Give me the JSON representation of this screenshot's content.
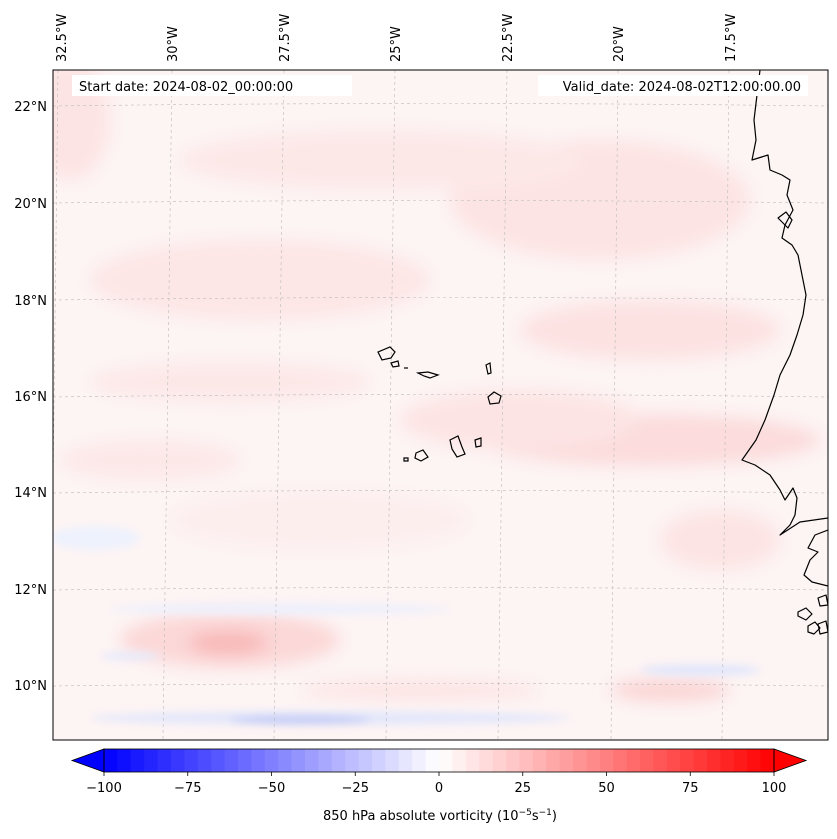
{
  "map": {
    "start_date": "Start date: 2024-08-02_00:00:00",
    "valid_date": "Valid_date: 2024-08-02T12:00:00.00",
    "longitude_labels": [
      "32.5°W",
      "30°W",
      "27.5°W",
      "25°W",
      "22.5°W",
      "20°W",
      "17.5°W"
    ],
    "latitude_labels": [
      "22°N",
      "20°N",
      "18°N",
      "16°N",
      "14°N",
      "12°N",
      "10°N"
    ],
    "field": "850 hPa absolute vorticity"
  },
  "colorbar": {
    "label_main": "850 hPa absolute vorticity (10",
    "label_exp1": "−5",
    "label_mid": "s",
    "label_exp2": "−1",
    "label_end": ")",
    "min": -100,
    "max": 100,
    "tick_values": [
      -100,
      -75,
      -50,
      -25,
      0,
      25,
      50,
      75,
      100
    ],
    "tick_labels": [
      "−100",
      "−75",
      "−50",
      "−25",
      "0",
      "25",
      "50",
      "75",
      "100"
    ],
    "cmap": "bwr",
    "levels": 50
  },
  "colors": {
    "negative_end": "#0000ff",
    "positive_end": "#ff0000",
    "neutral": "#ffffff",
    "coastline": "#000000",
    "gridline": "#bbbbbb"
  }
}
